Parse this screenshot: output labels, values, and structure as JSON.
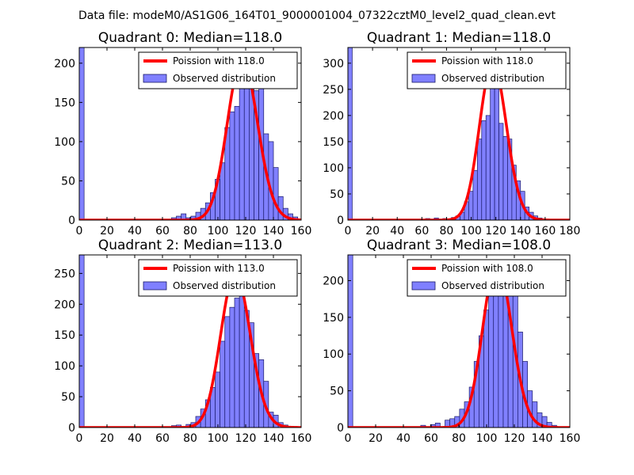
{
  "suptitle": "Data file: modeM0/AS1G06_164T01_9000001004_07322cztM0_level2_quad_clean.evt",
  "colors": {
    "bar_fill": "#8080ff",
    "bar_edge": "#1a1a66",
    "poisson_line": "#ff0000",
    "axes": "#000000"
  },
  "legend": {
    "observed_label": "Observed distribution"
  },
  "chart_data": [
    {
      "type": "bar",
      "title": "Quadrant 0: Median=118.0",
      "poisson_label": "Poission with 118.0",
      "median": 118.0,
      "xlim": [
        0,
        160
      ],
      "ylim": [
        0,
        220
      ],
      "xticks": [
        "0",
        "20",
        "40",
        "60",
        "80",
        "100",
        "120",
        "140",
        "160"
      ],
      "yticks": [
        "0",
        "50",
        "100",
        "150",
        "200"
      ],
      "bin_width": 3.5,
      "bins": [
        {
          "x": 0,
          "y": 220
        },
        {
          "x": 66.5,
          "y": 3
        },
        {
          "x": 70,
          "y": 5
        },
        {
          "x": 73.5,
          "y": 8
        },
        {
          "x": 77,
          "y": 3
        },
        {
          "x": 80.5,
          "y": 5
        },
        {
          "x": 84,
          "y": 10
        },
        {
          "x": 87.5,
          "y": 15
        },
        {
          "x": 91,
          "y": 22
        },
        {
          "x": 94.5,
          "y": 35
        },
        {
          "x": 98,
          "y": 52
        },
        {
          "x": 101.5,
          "y": 73
        },
        {
          "x": 105,
          "y": 118
        },
        {
          "x": 108.5,
          "y": 138
        },
        {
          "x": 112,
          "y": 145
        },
        {
          "x": 115.5,
          "y": 190
        },
        {
          "x": 119,
          "y": 205
        },
        {
          "x": 122.5,
          "y": 170
        },
        {
          "x": 126,
          "y": 165
        },
        {
          "x": 129.5,
          "y": 180
        },
        {
          "x": 133,
          "y": 110
        },
        {
          "x": 136.5,
          "y": 100
        },
        {
          "x": 140,
          "y": 67
        },
        {
          "x": 143.5,
          "y": 30
        },
        {
          "x": 147,
          "y": 15
        },
        {
          "x": 150.5,
          "y": 8
        },
        {
          "x": 154,
          "y": 4
        }
      ]
    },
    {
      "type": "bar",
      "title": "Quadrant 1: Median=118.0",
      "poisson_label": "Poission with 118.0",
      "median": 118.0,
      "xlim": [
        0,
        180
      ],
      "ylim": [
        0,
        330
      ],
      "xticks": [
        "0",
        "20",
        "40",
        "60",
        "80",
        "100",
        "120",
        "140",
        "160",
        "180"
      ],
      "yticks": [
        "0",
        "50",
        "100",
        "150",
        "200",
        "250",
        "300"
      ],
      "bin_width": 3.5,
      "bins": [
        {
          "x": 0,
          "y": 330
        },
        {
          "x": 63,
          "y": 3
        },
        {
          "x": 70,
          "y": 4
        },
        {
          "x": 77,
          "y": 3
        },
        {
          "x": 84,
          "y": 5
        },
        {
          "x": 87.5,
          "y": 8
        },
        {
          "x": 91,
          "y": 15
        },
        {
          "x": 94.5,
          "y": 35
        },
        {
          "x": 98,
          "y": 55
        },
        {
          "x": 101.5,
          "y": 95
        },
        {
          "x": 105,
          "y": 155
        },
        {
          "x": 108.5,
          "y": 190
        },
        {
          "x": 112,
          "y": 200
        },
        {
          "x": 115.5,
          "y": 260
        },
        {
          "x": 119,
          "y": 300
        },
        {
          "x": 122.5,
          "y": 185
        },
        {
          "x": 126,
          "y": 160
        },
        {
          "x": 129.5,
          "y": 155
        },
        {
          "x": 133,
          "y": 105
        },
        {
          "x": 136.5,
          "y": 75
        },
        {
          "x": 140,
          "y": 55
        },
        {
          "x": 143.5,
          "y": 25
        },
        {
          "x": 147,
          "y": 15
        },
        {
          "x": 150.5,
          "y": 8
        },
        {
          "x": 154,
          "y": 4
        }
      ]
    },
    {
      "type": "bar",
      "title": "Quadrant 2: Median=113.0",
      "poisson_label": "Poission with 113.0",
      "median": 113.0,
      "xlim": [
        0,
        160
      ],
      "ylim": [
        0,
        280
      ],
      "xticks": [
        "0",
        "20",
        "40",
        "60",
        "80",
        "100",
        "120",
        "140",
        "160"
      ],
      "yticks": [
        "0",
        "50",
        "100",
        "150",
        "200",
        "250"
      ],
      "bin_width": 3.5,
      "bins": [
        {
          "x": 0,
          "y": 280
        },
        {
          "x": 66.5,
          "y": 3
        },
        {
          "x": 70,
          "y": 4
        },
        {
          "x": 77,
          "y": 5
        },
        {
          "x": 80.5,
          "y": 8
        },
        {
          "x": 84,
          "y": 18
        },
        {
          "x": 87.5,
          "y": 30
        },
        {
          "x": 91,
          "y": 45
        },
        {
          "x": 94.5,
          "y": 65
        },
        {
          "x": 98,
          "y": 90
        },
        {
          "x": 101.5,
          "y": 140
        },
        {
          "x": 105,
          "y": 180
        },
        {
          "x": 108.5,
          "y": 195
        },
        {
          "x": 112,
          "y": 210
        },
        {
          "x": 115.5,
          "y": 250
        },
        {
          "x": 119,
          "y": 190
        },
        {
          "x": 122.5,
          "y": 170
        },
        {
          "x": 126,
          "y": 120
        },
        {
          "x": 129.5,
          "y": 110
        },
        {
          "x": 133,
          "y": 75
        },
        {
          "x": 136.5,
          "y": 25
        },
        {
          "x": 140,
          "y": 20
        },
        {
          "x": 143.5,
          "y": 8
        },
        {
          "x": 147,
          "y": 4
        }
      ]
    },
    {
      "type": "bar",
      "title": "Quadrant 3: Median=108.0",
      "poisson_label": "Poission with 108.0",
      "median": 108.0,
      "xlim": [
        0,
        160
      ],
      "ylim": [
        0,
        235
      ],
      "xticks": [
        "0",
        "20",
        "40",
        "60",
        "80",
        "100",
        "120",
        "140",
        "160"
      ],
      "yticks": [
        "0",
        "50",
        "100",
        "150",
        "200"
      ],
      "bin_width": 3.5,
      "bins": [
        {
          "x": 0,
          "y": 235
        },
        {
          "x": 52.5,
          "y": 3
        },
        {
          "x": 59.5,
          "y": 4
        },
        {
          "x": 63,
          "y": 6
        },
        {
          "x": 70,
          "y": 10
        },
        {
          "x": 73.5,
          "y": 12
        },
        {
          "x": 77,
          "y": 15
        },
        {
          "x": 80.5,
          "y": 25
        },
        {
          "x": 84,
          "y": 35
        },
        {
          "x": 87.5,
          "y": 55
        },
        {
          "x": 91,
          "y": 90
        },
        {
          "x": 94.5,
          "y": 125
        },
        {
          "x": 98,
          "y": 160
        },
        {
          "x": 101.5,
          "y": 190
        },
        {
          "x": 105,
          "y": 200
        },
        {
          "x": 108.5,
          "y": 190
        },
        {
          "x": 112,
          "y": 225
        },
        {
          "x": 115.5,
          "y": 180
        },
        {
          "x": 119,
          "y": 195
        },
        {
          "x": 122.5,
          "y": 130
        },
        {
          "x": 126,
          "y": 90
        },
        {
          "x": 129.5,
          "y": 50
        },
        {
          "x": 133,
          "y": 35
        },
        {
          "x": 136.5,
          "y": 20
        },
        {
          "x": 140,
          "y": 15
        },
        {
          "x": 143.5,
          "y": 7
        },
        {
          "x": 147,
          "y": 3
        }
      ]
    }
  ]
}
